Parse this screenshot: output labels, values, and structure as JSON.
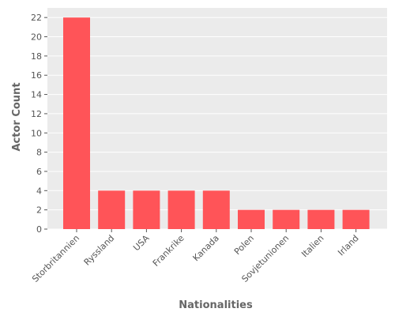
{
  "chart_data": {
    "type": "bar",
    "title": "",
    "xlabel": "Nationalities",
    "ylabel": "Actor Count",
    "categories": [
      "Storbritannien",
      "Ryssland",
      "USA",
      "Frankrike",
      "Kanada",
      "Polen",
      "Sovjetunionen",
      "Italien",
      "Irland"
    ],
    "values": [
      22,
      4,
      4,
      4,
      4,
      2,
      2,
      2,
      2
    ],
    "ylim": [
      0,
      23
    ],
    "yticks": [
      0,
      2,
      4,
      6,
      8,
      10,
      12,
      14,
      16,
      18,
      20,
      22
    ],
    "grid": true,
    "legend": "none",
    "colors": {
      "bar": "#ff5458",
      "plot_background": "#ebebeb",
      "grid": "#ffffff",
      "text": "#555555"
    }
  }
}
